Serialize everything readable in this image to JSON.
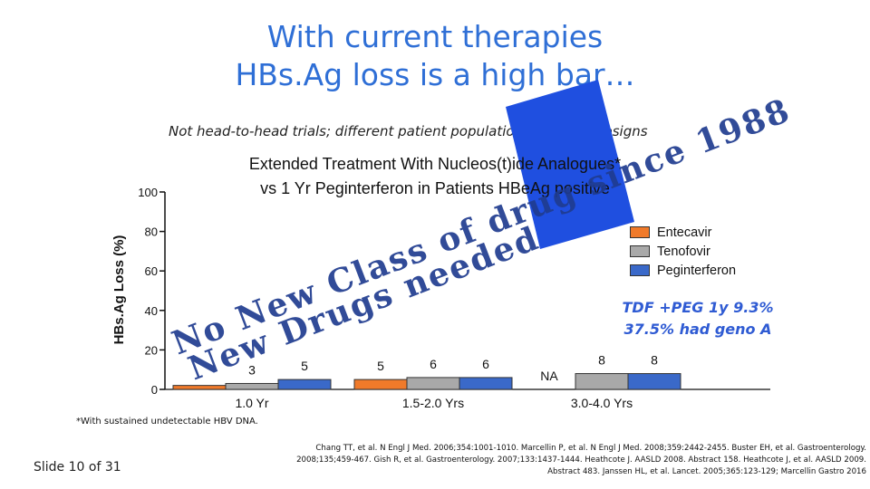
{
  "slide": {
    "title_line1": "With current therapies",
    "title_line2": "HBs.Ag loss is a high bar…",
    "subtitle": "Not head-to-head trials; different patient populations and trial designs",
    "footnote": "*With sustained undetectable HBV DNA.",
    "slide_number": "Slide 10 of 31",
    "references": [
      "Chang TT, et al. N Engl J Med. 2006;354:1001-1010. Marcellin P, et al. N Engl J Med. 2008;359:2442-2455. Buster EH, et al. Gastroenterology.",
      "2008;135;459-467. Gish R, et al. Gastroenterology. 2007;133:1437-1444. Heathcote J. AASLD 2008. Abstract 158. Heathcote J, et al. AASLD 2009.",
      "Abstract 483. Janssen HL, et al. Lancet. 2005;365:123-129; Marcellin Gastro 2016"
    ],
    "note_line1": "TDF +PEG 1y 9.3%",
    "note_line2": "37.5% had geno A",
    "overlay_line1": "No New Class of drug since 1988",
    "overlay_line2": "New Drugs needed",
    "colors": {
      "title": "#2f6fd6",
      "banner": "#1f4fe0",
      "overlay_text": "#1f3c8f",
      "note": "#2f5bd3"
    }
  },
  "chart_data": {
    "type": "bar",
    "title_line1": "Extended Treatment With Nucleos(t)ide Analogues*",
    "title_line2": "vs 1 Yr Peginterferon in Patients HBeAg positive",
    "ylabel": "HBs.Ag Loss (%)",
    "ylim": [
      0,
      100
    ],
    "yticks": [
      "0",
      "20",
      "40",
      "60",
      "80",
      "100"
    ],
    "categories": [
      "1.0 Yr",
      "1.5-2.0 Yrs",
      "3.0-4.0 Yrs"
    ],
    "series": [
      {
        "name": "Entecavir",
        "color": "#f07a2a",
        "values": [
          2,
          5,
          null
        ],
        "labels": [
          "",
          "5",
          "NA"
        ]
      },
      {
        "name": "Tenofovir",
        "color": "#a9a9a9",
        "values": [
          3,
          6,
          8
        ],
        "labels": [
          "3",
          "6",
          "8"
        ]
      },
      {
        "name": "Peginterferon",
        "color": "#3a69c9",
        "values": [
          5,
          6,
          8
        ],
        "labels": [
          "5",
          "6",
          "8"
        ]
      }
    ],
    "legend_position": "right"
  }
}
